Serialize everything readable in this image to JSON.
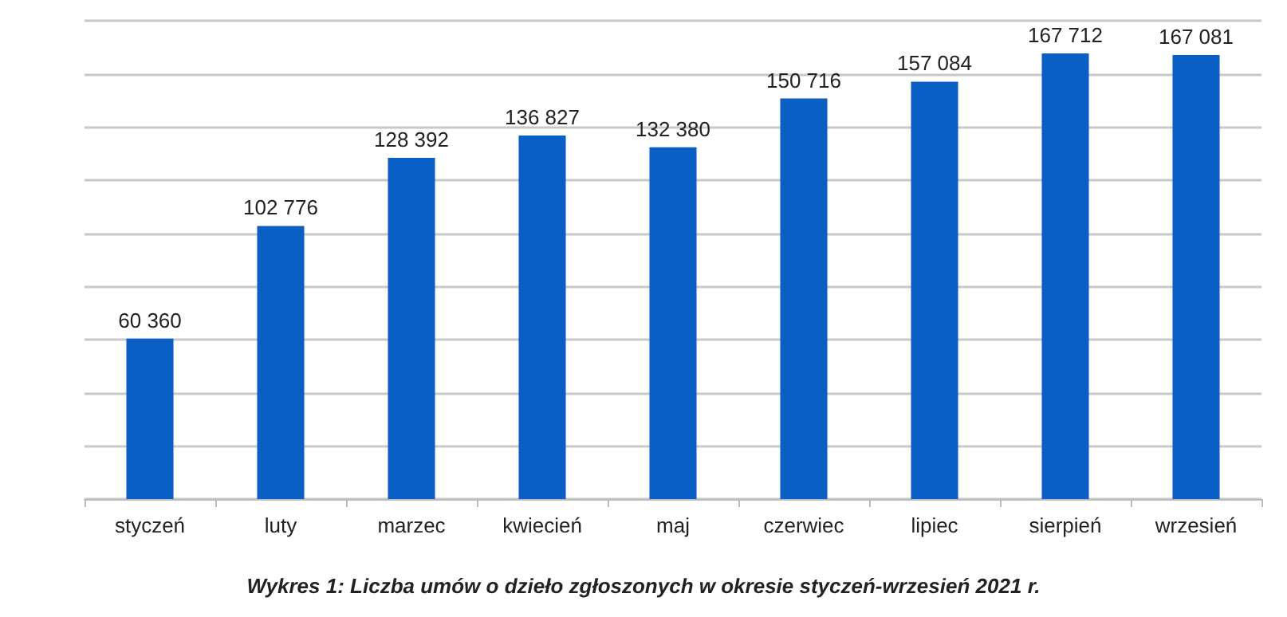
{
  "chart_data": {
    "type": "bar",
    "title": "Wykres 1: Liczba umów o dzieło zgłoszonych w okresie styczeń-wrzesień 2021 r.",
    "categories": [
      "styczeń",
      "luty",
      "marzec",
      "kwiecień",
      "maj",
      "czerwiec",
      "lipiec",
      "sierpień",
      "wrzesień"
    ],
    "values": [
      60360,
      102776,
      128392,
      136827,
      132380,
      150716,
      157084,
      167712,
      167081
    ],
    "value_labels": [
      "60 360",
      "102 776",
      "128 392",
      "136 827",
      "132 380",
      "150 716",
      "157 084",
      "167 712",
      "167 081"
    ],
    "color": "#0a5fc4",
    "ylim": [
      0,
      180000
    ],
    "yticks": [
      {
        "value": 0,
        "label": null
      },
      {
        "value": 20000,
        "label": null
      },
      {
        "value": 40000,
        "label": null
      },
      {
        "value": 60000,
        "label": null
      },
      {
        "value": 80000,
        "label": null
      },
      {
        "value": 100000,
        "label": null
      },
      {
        "value": 120000,
        "label": null
      },
      {
        "value": 140000,
        "label": null
      },
      {
        "value": 160000,
        "label": null
      },
      {
        "value": 180000,
        "label": null
      }
    ],
    "grid": "y",
    "tick_labels": "x"
  }
}
